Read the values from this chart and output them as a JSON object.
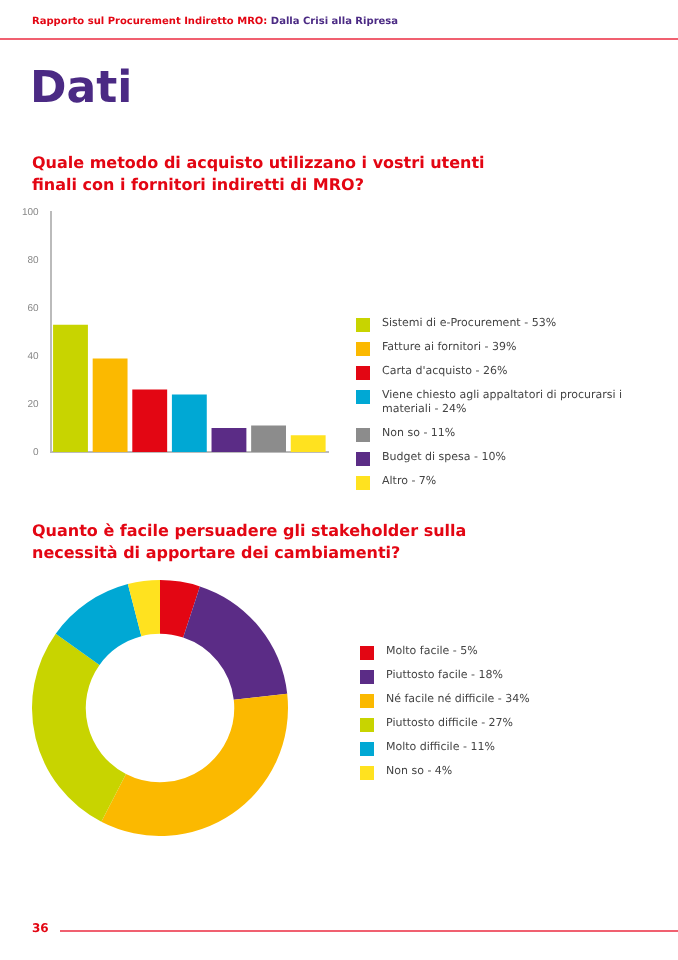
{
  "chart_data": [
    {
      "type": "bar",
      "title": "Quale metodo di acquisto utilizzano i vostri utenti finali con i fornitori indiretti di MRO?",
      "annotations": [
        "Rapporto sul Procurement Indiretto MRO:",
        "Dalla Crisi alla Ripresa",
        "Dati"
      ],
      "categories": [
        null,
        null,
        null,
        null,
        null,
        null,
        null
      ],
      "series": [
        {
          "name": "Sistemi di e-Procurement - 53%",
          "color": "#c8d400",
          "values": [
            53,
            null,
            null,
            null,
            null,
            null,
            null
          ]
        },
        {
          "name": "Fatture ai fornitori - 39%",
          "color": "#fbb900",
          "values": [
            null,
            39,
            null,
            null,
            null,
            null,
            null
          ]
        },
        {
          "name": "Carta d'acquisto - 26%",
          "color": "#e30613",
          "values": [
            null,
            null,
            26,
            null,
            null,
            null,
            null
          ]
        },
        {
          "name": "Viene chiesto agli appaltatori di procurarsi i materiali - 24%",
          "color": "#00a8d4",
          "values": [
            null,
            null,
            null,
            24,
            null,
            null,
            null
          ]
        },
        {
          "name": "Non so - 11%",
          "color": "#8c8c8c",
          "values": [
            null,
            null,
            null,
            null,
            null,
            11,
            null
          ]
        },
        {
          "name": "Budget di spesa - 10%",
          "color": "#5b2c86",
          "values": [
            null,
            null,
            null,
            null,
            10,
            null,
            null
          ]
        },
        {
          "name": "Altro - 7%",
          "color": "#ffe21f",
          "values": [
            null,
            null,
            null,
            null,
            null,
            null,
            7
          ]
        }
      ],
      "ylim": [
        0,
        100
      ],
      "yticks": [
        0,
        20,
        40,
        60,
        80,
        100
      ],
      "grid": false,
      "legend": "right"
    },
    {
      "type": "donut",
      "title": "Quanto è facile persuadere gli stakeholder sulla necessità di apportare dei cambiamenti?",
      "annotations": [
        "36"
      ],
      "categories": [
        "Molto facile - 5%",
        "Piuttosto facile - 18%",
        "Né facile né difficile - 34%",
        "Piuttosto difficile - 27%",
        "Molto difficile - 11%",
        "Non so - 4%"
      ],
      "values": [
        5,
        18,
        34,
        27,
        11,
        4
      ],
      "colors": [
        "#e30613",
        "#5b2c86",
        "#fbb900",
        "#c8d400",
        "#00a8d4",
        "#ffe21f"
      ],
      "legend": "right"
    }
  ]
}
